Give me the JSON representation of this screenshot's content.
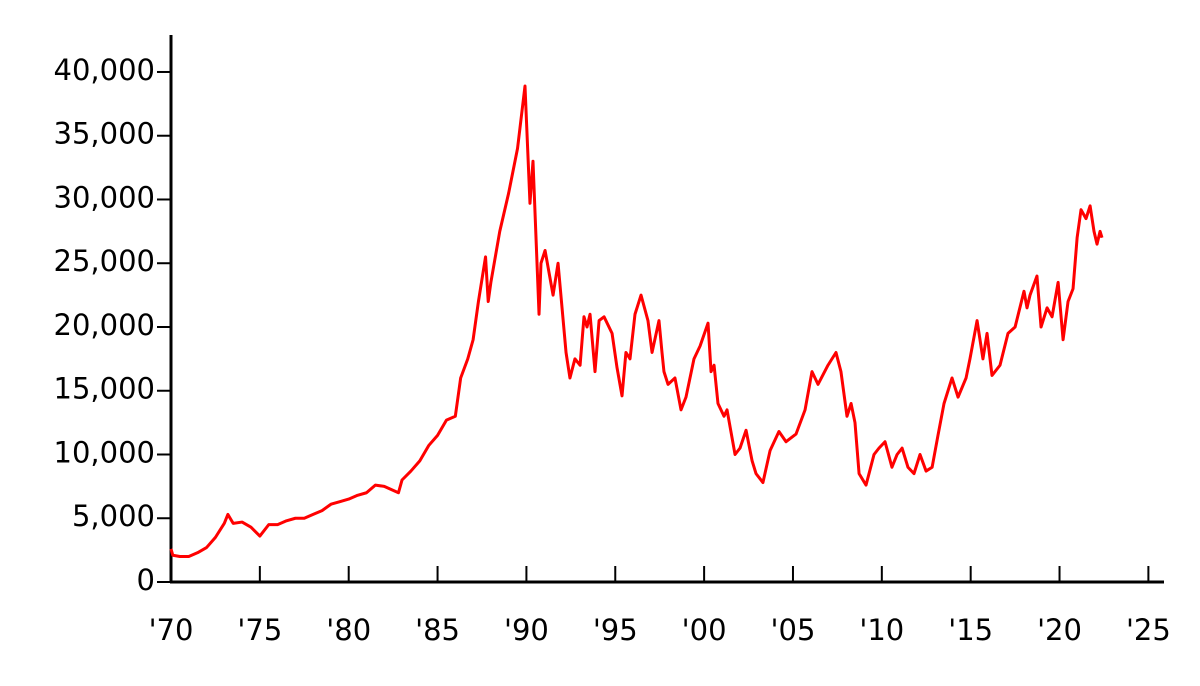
{
  "chart_data": {
    "type": "line",
    "x": [
      1970.0,
      1970.1,
      1970.5,
      1971.0,
      1971.5,
      1972.0,
      1972.5,
      1973.0,
      1973.2,
      1973.5,
      1974.0,
      1974.5,
      1975.0,
      1975.5,
      1976.0,
      1976.5,
      1977.0,
      1977.5,
      1978.0,
      1978.5,
      1979.0,
      1979.5,
      1980.0,
      1980.5,
      1981.0,
      1981.5,
      1982.0,
      1982.8,
      1983.0,
      1983.5,
      1984.0,
      1984.5,
      1985.0,
      1985.5,
      1986.0,
      1986.3,
      1986.7,
      1987.0,
      1987.3,
      1987.7,
      1987.85,
      1988.0,
      1988.5,
      1989.0,
      1989.5,
      1989.92,
      1990.2,
      1990.37,
      1990.71,
      1990.82,
      1991.05,
      1991.5,
      1991.78,
      1992.23,
      1992.45,
      1992.73,
      1993.02,
      1993.24,
      1993.41,
      1993.58,
      1993.86,
      1994.09,
      1994.37,
      1994.82,
      1995.1,
      1995.38,
      1995.6,
      1995.83,
      1996.11,
      1996.45,
      1996.84,
      1997.07,
      1997.46,
      1997.63,
      1997.74,
      1997.97,
      1998.36,
      1998.7,
      1998.98,
      1999.43,
      1999.77,
      2000.22,
      2000.39,
      2000.56,
      2000.78,
      2001.12,
      2001.29,
      2001.74,
      2002.02,
      2002.36,
      2002.7,
      2002.92,
      2003.31,
      2003.71,
      2004.21,
      2004.61,
      2005.17,
      2005.68,
      2006.07,
      2006.41,
      2006.97,
      2007.42,
      2007.7,
      2008.04,
      2008.27,
      2008.49,
      2008.72,
      2009.11,
      2009.56,
      2009.84,
      2010.18,
      2010.57,
      2010.86,
      2011.14,
      2011.47,
      2011.81,
      2012.15,
      2012.49,
      2012.83,
      2013.16,
      2013.5,
      2013.95,
      2014.29,
      2014.74,
      2014.96,
      2015.36,
      2015.69,
      2015.92,
      2016.2,
      2016.65,
      2017.1,
      2017.5,
      2018.0,
      2018.17,
      2018.34,
      2018.73,
      2018.96,
      2019.3,
      2019.58,
      2019.92,
      2020.2,
      2020.48,
      2020.76,
      2020.99,
      2021.21,
      2021.49,
      2021.72,
      2021.94,
      2022.11,
      2022.28,
      2022.39
    ],
    "series": [
      {
        "color": "#ff0000",
        "values": [
          2600,
          2100,
          2000,
          2000,
          2300,
          2700,
          3500,
          4600,
          5300,
          4600,
          4700,
          4300,
          3600,
          4500,
          4500,
          4800,
          5000,
          5000,
          5300,
          5600,
          6100,
          6300,
          6500,
          6800,
          7000,
          7600,
          7500,
          7000,
          8000,
          8700,
          9500,
          10700,
          11500,
          12700,
          13000,
          16000,
          17500,
          19000,
          22000,
          25500,
          22000,
          23500,
          27500,
          30500,
          34000,
          38900,
          29700,
          33000,
          21000,
          25000,
          26000,
          22500,
          25000,
          18000,
          16000,
          17500,
          17000,
          20800,
          20000,
          21000,
          16500,
          20500,
          20800,
          19500,
          16800,
          14600,
          18000,
          17500,
          21000,
          22500,
          20500,
          18000,
          20500,
          18000,
          16500,
          15500,
          16000,
          13500,
          14500,
          17500,
          18500,
          20300,
          16500,
          17000,
          14000,
          13000,
          13500,
          10000,
          10500,
          11900,
          9500,
          8500,
          7800,
          10300,
          11800,
          11000,
          11600,
          13500,
          16500,
          15500,
          17000,
          18000,
          16500,
          13000,
          14000,
          12500,
          8500,
          7600,
          10000,
          10500,
          11000,
          9000,
          10000,
          10500,
          9000,
          8500,
          10000,
          8700,
          9000,
          11500,
          14000,
          16000,
          14500,
          16000,
          17500,
          20500,
          17500,
          19500,
          16200,
          17000,
          19500,
          20000,
          22800,
          21500,
          22500,
          24000,
          20000,
          21500,
          20800,
          23500,
          19000,
          22000,
          23000,
          27000,
          29200,
          28500,
          29500,
          27500,
          26500,
          27500,
          27000
        ]
      }
    ],
    "xlim": [
      1970,
      2025.8
    ],
    "xticks": [
      {
        "value": 1970,
        "label": "'70"
      },
      {
        "value": 1975,
        "label": "'75"
      },
      {
        "value": 1980,
        "label": "'80"
      },
      {
        "value": 1985,
        "label": "'85"
      },
      {
        "value": 1990,
        "label": "'90"
      },
      {
        "value": 1995,
        "label": "'95"
      },
      {
        "value": 2000,
        "label": "'00"
      },
      {
        "value": 2005,
        "label": "'05"
      },
      {
        "value": 2010,
        "label": "'10"
      },
      {
        "value": 2015,
        "label": "'15"
      },
      {
        "value": 2020,
        "label": "'20"
      },
      {
        "value": 2025,
        "label": "'25"
      }
    ],
    "ylim": [
      0,
      42900
    ],
    "yticks": [
      0,
      {
        "value": 5000,
        "label": "5,000"
      },
      {
        "value": 10000,
        "label": "10,000"
      },
      {
        "value": 15000,
        "label": "15,000"
      },
      {
        "value": 20000,
        "label": "20,000"
      },
      {
        "value": 25000,
        "label": "25,000"
      },
      {
        "value": 30000,
        "label": "30,000"
      },
      {
        "value": 35000,
        "label": "35,000"
      },
      {
        "value": 40000,
        "label": "40,000"
      }
    ]
  }
}
